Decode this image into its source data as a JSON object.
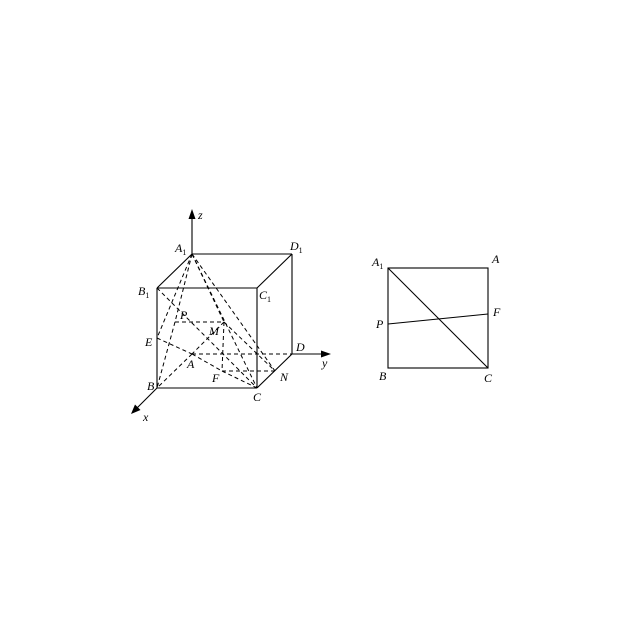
{
  "left_figure": {
    "labels": {
      "A1": {
        "main": "A",
        "sub": "1"
      },
      "D1": {
        "main": "D",
        "sub": "1"
      },
      "B1": {
        "main": "B",
        "sub": "1"
      },
      "C1": {
        "main": "C",
        "sub": "1"
      },
      "P": "P",
      "M": "M",
      "E": "E",
      "A": "A",
      "D": "D",
      "B": "B",
      "F": "F",
      "C": "C",
      "N": "N",
      "x": "x",
      "y": "y",
      "z": "z"
    }
  },
  "right_figure": {
    "labels": {
      "A1": {
        "main": "A",
        "sub": "1"
      },
      "A": "A",
      "P": "P",
      "F": "F",
      "B": "B",
      "C": "C"
    }
  }
}
